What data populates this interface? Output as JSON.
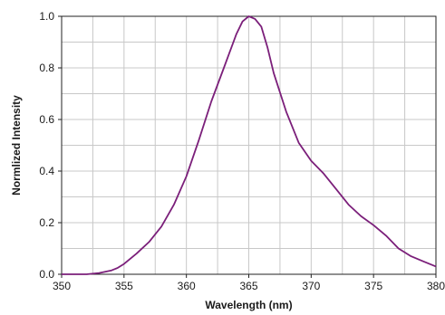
{
  "chart_data": {
    "type": "line",
    "xlabel": "Wavelength (nm)",
    "ylabel": "Normlized Intensity",
    "xlim": [
      350,
      380
    ],
    "ylim": [
      0,
      1.0
    ],
    "x_ticks": [
      "350",
      "355",
      "360",
      "365",
      "370",
      "375",
      "380"
    ],
    "x_tick_values": [
      350,
      355,
      360,
      365,
      370,
      375,
      380
    ],
    "y_ticks": [
      "0.0",
      "0.2",
      "0.4",
      "0.6",
      "0.8",
      "1.0"
    ],
    "y_tick_values": [
      0,
      0.2,
      0.4,
      0.6,
      0.8,
      1.0
    ],
    "grid": true,
    "series": [
      {
        "color": "#7b1f7a",
        "x": [
          350,
          352,
          353,
          354,
          354.5,
          355,
          356,
          357,
          358,
          359,
          360,
          361,
          362,
          363,
          364,
          364.5,
          365,
          365.5,
          366,
          366.5,
          367,
          368,
          369,
          370,
          371,
          372,
          373,
          374,
          375,
          376,
          377,
          378,
          379,
          380
        ],
        "y": [
          0.0,
          0.0,
          0.005,
          0.015,
          0.025,
          0.04,
          0.08,
          0.125,
          0.185,
          0.27,
          0.38,
          0.52,
          0.67,
          0.8,
          0.93,
          0.98,
          1.0,
          0.99,
          0.96,
          0.88,
          0.78,
          0.63,
          0.51,
          0.44,
          0.39,
          0.33,
          0.27,
          0.225,
          0.19,
          0.15,
          0.1,
          0.07,
          0.05,
          0.03
        ]
      }
    ]
  }
}
